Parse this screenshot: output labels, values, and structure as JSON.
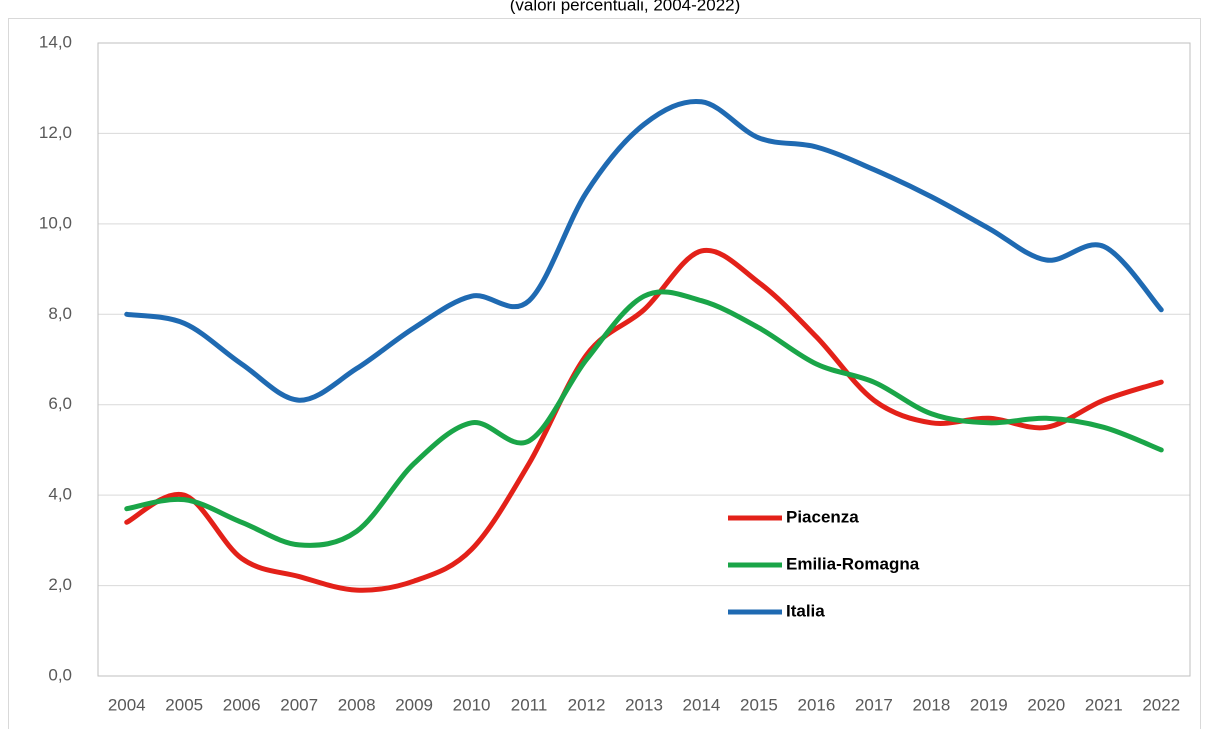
{
  "chart_data": {
    "type": "line",
    "subtitle": "(valori percentuali, 2004-2022)",
    "categories": [
      "2004",
      "2005",
      "2006",
      "2007",
      "2008",
      "2009",
      "2010",
      "2011",
      "2012",
      "2013",
      "2014",
      "2015",
      "2016",
      "2017",
      "2018",
      "2019",
      "2020",
      "2021",
      "2022"
    ],
    "series": [
      {
        "name": "Piacenza",
        "color": "#e32119",
        "values": [
          3.4,
          4.0,
          2.6,
          2.2,
          1.9,
          2.1,
          2.8,
          4.7,
          7.1,
          8.1,
          9.4,
          8.7,
          7.5,
          6.1,
          5.6,
          5.7,
          5.5,
          6.1,
          6.5
        ]
      },
      {
        "name": "Emilia-Romagna",
        "color": "#1aa548",
        "values": [
          3.7,
          3.9,
          3.4,
          2.9,
          3.2,
          4.7,
          5.6,
          5.2,
          7.0,
          8.4,
          8.3,
          7.7,
          6.9,
          6.5,
          5.8,
          5.6,
          5.7,
          5.5,
          5.0
        ]
      },
      {
        "name": "Italia",
        "color": "#1f6ab2",
        "values": [
          8.0,
          7.8,
          6.9,
          6.1,
          6.8,
          7.7,
          8.4,
          8.3,
          10.7,
          12.2,
          12.7,
          11.9,
          11.7,
          11.2,
          10.6,
          9.9,
          9.2,
          9.5,
          8.1
        ]
      }
    ],
    "ylim": [
      0,
      14
    ],
    "yticks": [
      {
        "value": 0,
        "label": "0,0"
      },
      {
        "value": 2,
        "label": "2,0"
      },
      {
        "value": 4,
        "label": "4,0"
      },
      {
        "value": 6,
        "label": "6,0"
      },
      {
        "value": 8,
        "label": "8,0"
      },
      {
        "value": 10,
        "label": "10,0"
      },
      {
        "value": 12,
        "label": "12,0"
      },
      {
        "value": 14,
        "label": "14,0"
      }
    ],
    "grid": true,
    "smooth": true
  }
}
